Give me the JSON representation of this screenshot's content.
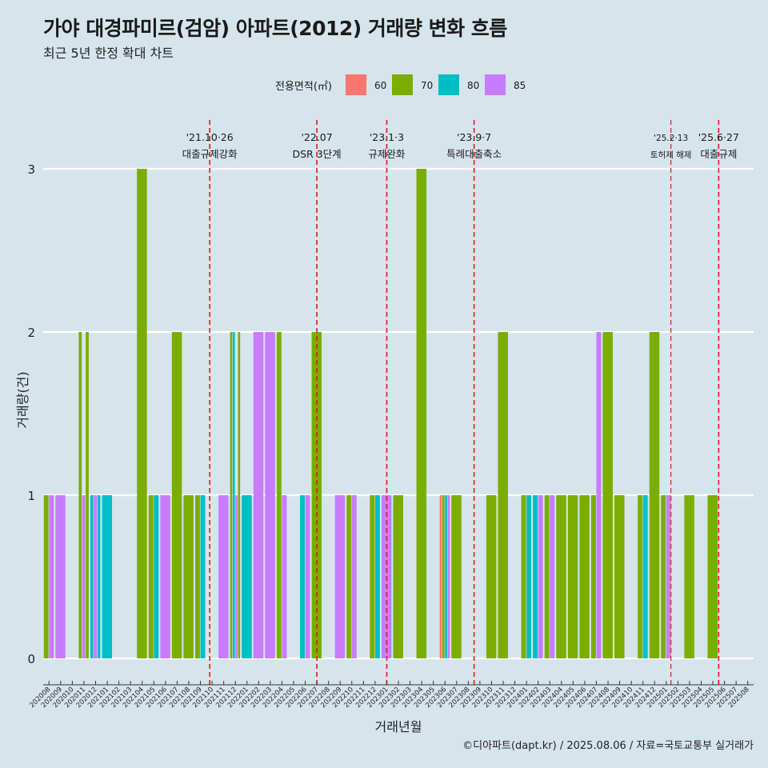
{
  "header": {
    "title": "가야 대경파미르(검암) 아파트(2012) 거래량 변화 흐름",
    "subtitle": "최근 5년 한정 확대 차트"
  },
  "caption": "©디아파트(dapt.kr) / 2025.08.06 / 자료=국토교통부 실거래가",
  "colors": {
    "60": "#f8766d",
    "70": "#7cae00",
    "80": "#00bfc4",
    "85": "#c77cff",
    "background": "#d6e4ec",
    "event_line": "#e8141e"
  },
  "chart_data": {
    "type": "bar",
    "title": "가야 대경파미르(검암) 아파트(2012) 거래량 변화 흐름",
    "subtitle": "최근 5년 한정 확대 차트",
    "xlabel": "거래년월",
    "ylabel": "거래량(건)",
    "ylim": [
      0,
      3
    ],
    "y_ticks": [
      0,
      1,
      2,
      3
    ],
    "grid": true,
    "legend": {
      "title": "전용면적(㎡)",
      "position": "top",
      "entries": [
        "60",
        "70",
        "80",
        "85"
      ]
    },
    "categories": [
      "202008",
      "202009",
      "202010",
      "202011",
      "202012",
      "202101",
      "202102",
      "202103",
      "202104",
      "202105",
      "202106",
      "202107",
      "202108",
      "202109",
      "202110",
      "202111",
      "202112",
      "202201",
      "202202",
      "202203",
      "202204",
      "202205",
      "202206",
      "202207",
      "202208",
      "202209",
      "202210",
      "202211",
      "202212",
      "202301",
      "202302",
      "202303",
      "202304",
      "202305",
      "202306",
      "202307",
      "202308",
      "202309",
      "202310",
      "202311",
      "202312",
      "202401",
      "202402",
      "202403",
      "202404",
      "202405",
      "202406",
      "202407",
      "202408",
      "202409",
      "202410",
      "202411",
      "202412",
      "202501",
      "202502",
      "202503",
      "202504",
      "202505",
      "202506",
      "202507",
      "202508"
    ],
    "bars": [
      {
        "month": "202008",
        "groups": [
          {
            "area": "70",
            "count": 1
          },
          {
            "area": "85",
            "count": 1
          }
        ]
      },
      {
        "month": "202009",
        "groups": [
          {
            "area": "85",
            "count": 1
          }
        ]
      },
      {
        "month": "202011",
        "groups": [
          {
            "area": "70",
            "count": 2
          },
          {
            "area": "85",
            "count": 1
          },
          {
            "area": "70",
            "count": 2
          }
        ]
      },
      {
        "month": "202012",
        "groups": [
          {
            "area": "80",
            "count": 1
          },
          {
            "area": "85",
            "count": 1
          },
          {
            "area": "80",
            "count": 1
          }
        ]
      },
      {
        "month": "202101",
        "groups": [
          {
            "area": "80",
            "count": 1
          }
        ]
      },
      {
        "month": "202104",
        "groups": [
          {
            "area": "70",
            "count": 3
          }
        ]
      },
      {
        "month": "202105",
        "groups": [
          {
            "area": "70",
            "count": 1
          },
          {
            "area": "80",
            "count": 1
          }
        ]
      },
      {
        "month": "202106",
        "groups": [
          {
            "area": "85",
            "count": 1
          }
        ]
      },
      {
        "month": "202107",
        "groups": [
          {
            "area": "70",
            "count": 2
          }
        ]
      },
      {
        "month": "202108",
        "groups": [
          {
            "area": "70",
            "count": 1
          }
        ]
      },
      {
        "month": "202109",
        "groups": [
          {
            "area": "70",
            "count": 1
          },
          {
            "area": "80",
            "count": 1
          }
        ]
      },
      {
        "month": "202111",
        "groups": [
          {
            "area": "85",
            "count": 1
          }
        ]
      },
      {
        "month": "202112",
        "groups": [
          {
            "area": "70",
            "count": 2
          },
          {
            "area": "80",
            "count": 2
          },
          {
            "area": "85",
            "count": 1
          },
          {
            "area": "70",
            "count": 2
          }
        ]
      },
      {
        "month": "202201",
        "groups": [
          {
            "area": "80",
            "count": 1
          }
        ]
      },
      {
        "month": "202202",
        "groups": [
          {
            "area": "85",
            "count": 2
          }
        ]
      },
      {
        "month": "202203",
        "groups": [
          {
            "area": "85",
            "count": 2
          }
        ]
      },
      {
        "month": "202204",
        "groups": [
          {
            "area": "70",
            "count": 2
          },
          {
            "area": "85",
            "count": 1
          }
        ]
      },
      {
        "month": "202206",
        "groups": [
          {
            "area": "80",
            "count": 1
          },
          {
            "area": "85",
            "count": 1
          }
        ]
      },
      {
        "month": "202207",
        "groups": [
          {
            "area": "70",
            "count": 2
          }
        ]
      },
      {
        "month": "202209",
        "groups": [
          {
            "area": "85",
            "count": 1
          }
        ]
      },
      {
        "month": "202210",
        "groups": [
          {
            "area": "70",
            "count": 1
          },
          {
            "area": "85",
            "count": 1
          }
        ]
      },
      {
        "month": "202212",
        "groups": [
          {
            "area": "70",
            "count": 1
          },
          {
            "area": "80",
            "count": 1
          }
        ]
      },
      {
        "month": "202301",
        "groups": [
          {
            "area": "85",
            "count": 1
          }
        ]
      },
      {
        "month": "202302",
        "groups": [
          {
            "area": "70",
            "count": 1
          }
        ]
      },
      {
        "month": "202304",
        "groups": [
          {
            "area": "70",
            "count": 3
          }
        ]
      },
      {
        "month": "202306",
        "groups": [
          {
            "area": "60",
            "count": 1
          },
          {
            "area": "70",
            "count": 1
          },
          {
            "area": "80",
            "count": 1
          },
          {
            "area": "85",
            "count": 1
          }
        ]
      },
      {
        "month": "202307",
        "groups": [
          {
            "area": "70",
            "count": 1
          }
        ]
      },
      {
        "month": "202310",
        "groups": [
          {
            "area": "70",
            "count": 1
          }
        ]
      },
      {
        "month": "202311",
        "groups": [
          {
            "area": "70",
            "count": 2
          }
        ]
      },
      {
        "month": "202401",
        "groups": [
          {
            "area": "70",
            "count": 1
          },
          {
            "area": "80",
            "count": 1
          }
        ]
      },
      {
        "month": "202402",
        "groups": [
          {
            "area": "80",
            "count": 1
          },
          {
            "area": "85",
            "count": 1
          }
        ]
      },
      {
        "month": "202403",
        "groups": [
          {
            "area": "70",
            "count": 1
          },
          {
            "area": "85",
            "count": 1
          }
        ]
      },
      {
        "month": "202404",
        "groups": [
          {
            "area": "70",
            "count": 1
          }
        ]
      },
      {
        "month": "202405",
        "groups": [
          {
            "area": "70",
            "count": 1
          }
        ]
      },
      {
        "month": "202406",
        "groups": [
          {
            "area": "70",
            "count": 1
          }
        ]
      },
      {
        "month": "202407",
        "groups": [
          {
            "area": "70",
            "count": 1
          },
          {
            "area": "85",
            "count": 2
          }
        ]
      },
      {
        "month": "202408",
        "groups": [
          {
            "area": "70",
            "count": 2
          }
        ]
      },
      {
        "month": "202409",
        "groups": [
          {
            "area": "70",
            "count": 1
          }
        ]
      },
      {
        "month": "202411",
        "groups": [
          {
            "area": "70",
            "count": 1
          },
          {
            "area": "80",
            "count": 1
          }
        ]
      },
      {
        "month": "202412",
        "groups": [
          {
            "area": "70",
            "count": 2
          }
        ]
      },
      {
        "month": "202501",
        "groups": [
          {
            "area": "70",
            "count": 1
          },
          {
            "area": "85",
            "count": 1
          }
        ]
      },
      {
        "month": "202503",
        "groups": [
          {
            "area": "70",
            "count": 1
          }
        ]
      },
      {
        "month": "202505",
        "groups": [
          {
            "area": "70",
            "count": 1
          }
        ]
      }
    ],
    "events": [
      {
        "date": "'21.10·26",
        "label": "대출규제강화",
        "month": "202110.3",
        "size": "normal"
      },
      {
        "date": "'22.07",
        "label": "DSR 3단계",
        "month": "202207.5",
        "size": "normal"
      },
      {
        "date": "'23.1·3",
        "label": "규제완화",
        "month": "202301.5",
        "size": "normal"
      },
      {
        "date": "'23.9·7",
        "label": "특례대출축소",
        "month": "202309.0",
        "size": "normal"
      },
      {
        "date": "'25.2·13",
        "label": "토허제 해제",
        "month": "202501.9",
        "size": "small"
      },
      {
        "date": "'25.6·27",
        "label": "대출규제",
        "month": "202506.0",
        "size": "normal"
      }
    ]
  }
}
